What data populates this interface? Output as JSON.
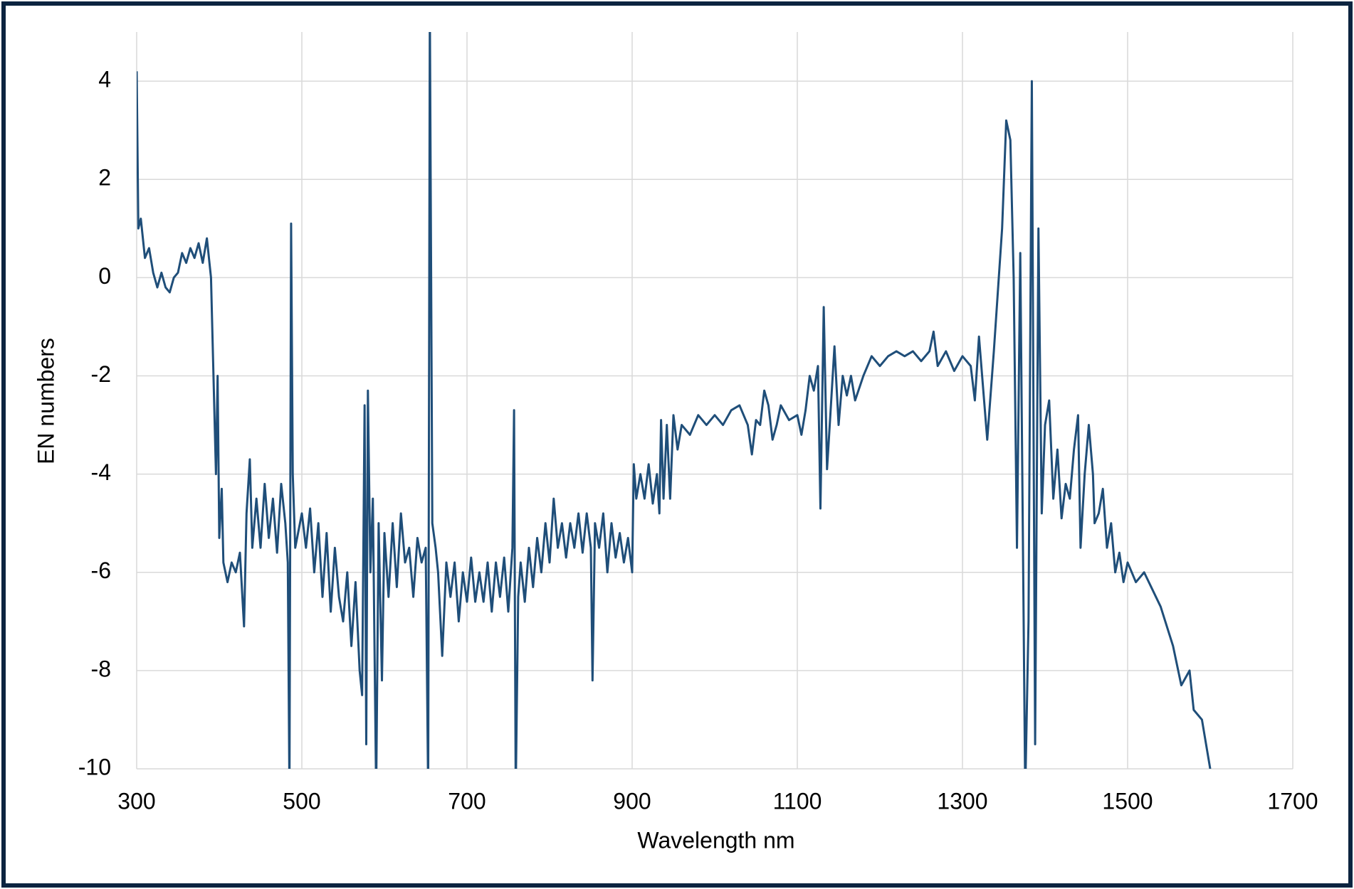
{
  "chart_data": {
    "type": "line",
    "x_label": "Wavelength nm",
    "y_label": "EN numbers",
    "color": "#1f4e79",
    "grid": true,
    "xlim": [
      300,
      1700
    ],
    "ylim": [
      -10,
      5
    ],
    "xticks": [
      300,
      500,
      700,
      900,
      1100,
      1300,
      1500,
      1700
    ],
    "yticks": [
      -10,
      -8,
      -6,
      -4,
      -2,
      0,
      2,
      4
    ],
    "x": [
      300,
      302,
      305,
      310,
      315,
      320,
      325,
      330,
      335,
      340,
      345,
      350,
      355,
      360,
      365,
      370,
      375,
      380,
      385,
      390,
      393,
      396,
      398,
      400,
      403,
      405,
      410,
      415,
      420,
      425,
      430,
      433,
      437,
      440,
      445,
      450,
      455,
      460,
      465,
      470,
      475,
      480,
      483,
      485,
      487,
      489,
      492,
      500,
      505,
      510,
      515,
      520,
      525,
      530,
      535,
      540,
      545,
      550,
      555,
      560,
      565,
      570,
      573,
      576,
      578,
      580,
      583,
      586,
      590,
      593,
      597,
      600,
      605,
      610,
      615,
      620,
      625,
      630,
      635,
      640,
      645,
      650,
      653,
      655,
      658,
      662,
      665,
      670,
      675,
      680,
      685,
      690,
      695,
      700,
      705,
      710,
      715,
      720,
      725,
      730,
      735,
      740,
      745,
      750,
      755,
      757,
      759,
      762,
      765,
      770,
      775,
      780,
      785,
      790,
      795,
      800,
      805,
      810,
      815,
      820,
      825,
      830,
      835,
      840,
      845,
      850,
      852,
      855,
      860,
      865,
      870,
      875,
      880,
      885,
      890,
      895,
      900,
      902,
      905,
      910,
      915,
      920,
      925,
      930,
      933,
      935,
      938,
      942,
      946,
      950,
      955,
      960,
      970,
      980,
      990,
      1000,
      1010,
      1020,
      1030,
      1040,
      1045,
      1050,
      1055,
      1060,
      1065,
      1070,
      1075,
      1080,
      1090,
      1100,
      1105,
      1110,
      1115,
      1120,
      1125,
      1128,
      1132,
      1136,
      1140,
      1145,
      1150,
      1155,
      1160,
      1165,
      1170,
      1180,
      1190,
      1200,
      1210,
      1220,
      1230,
      1240,
      1250,
      1260,
      1265,
      1270,
      1280,
      1290,
      1300,
      1310,
      1315,
      1320,
      1330,
      1338,
      1348,
      1353,
      1358,
      1362,
      1366,
      1370,
      1376,
      1380,
      1384,
      1388,
      1392,
      1396,
      1400,
      1405,
      1410,
      1415,
      1420,
      1425,
      1430,
      1435,
      1440,
      1443,
      1448,
      1453,
      1458,
      1460,
      1465,
      1470,
      1475,
      1480,
      1485,
      1490,
      1495,
      1500,
      1505,
      1510,
      1520,
      1540,
      1555,
      1565,
      1575,
      1580,
      1590,
      1595,
      1600
    ],
    "values": [
      4.2,
      1.0,
      1.2,
      0.4,
      0.6,
      0.1,
      -0.2,
      0.1,
      -0.2,
      -0.3,
      0.0,
      0.1,
      0.5,
      0.3,
      0.6,
      0.4,
      0.7,
      0.3,
      0.8,
      0.0,
      -2.0,
      -4.0,
      -2.0,
      -5.3,
      -4.3,
      -5.8,
      -6.2,
      -5.8,
      -6.0,
      -5.6,
      -7.1,
      -4.8,
      -3.7,
      -5.5,
      -4.5,
      -5.5,
      -4.2,
      -5.3,
      -4.5,
      -5.6,
      -4.2,
      -5.0,
      -5.8,
      -10.5,
      1.1,
      -4.0,
      -5.5,
      -4.8,
      -5.5,
      -4.7,
      -6.0,
      -5.0,
      -6.5,
      -5.2,
      -6.8,
      -5.5,
      -6.5,
      -7.0,
      -6.0,
      -7.5,
      -6.2,
      -8.0,
      -8.5,
      -2.6,
      -9.5,
      -2.3,
      -6.0,
      -4.5,
      -10.5,
      -5.0,
      -8.2,
      -5.2,
      -6.5,
      -5.0,
      -6.3,
      -4.8,
      -5.8,
      -5.5,
      -6.5,
      -5.3,
      -5.8,
      -5.5,
      -10.5,
      5.5,
      -5.0,
      -5.5,
      -6.0,
      -7.7,
      -5.8,
      -6.5,
      -5.8,
      -7.0,
      -6.0,
      -6.6,
      -5.7,
      -6.6,
      -6.0,
      -6.6,
      -5.8,
      -6.8,
      -5.8,
      -6.5,
      -5.7,
      -6.8,
      -5.5,
      -2.7,
      -10.5,
      -6.5,
      -5.8,
      -6.6,
      -5.5,
      -6.3,
      -5.3,
      -6.0,
      -5.0,
      -5.8,
      -4.5,
      -5.5,
      -5.0,
      -5.7,
      -5.0,
      -5.5,
      -4.8,
      -5.6,
      -4.8,
      -5.5,
      -8.2,
      -5.0,
      -5.5,
      -4.8,
      -6.0,
      -5.0,
      -5.7,
      -5.2,
      -5.8,
      -5.3,
      -6.0,
      -3.8,
      -4.5,
      -4.0,
      -4.5,
      -3.8,
      -4.6,
      -4.0,
      -4.8,
      -2.9,
      -4.5,
      -3.0,
      -4.5,
      -2.8,
      -3.5,
      -3.0,
      -3.2,
      -2.8,
      -3.0,
      -2.8,
      -3.0,
      -2.7,
      -2.6,
      -3.0,
      -3.6,
      -2.9,
      -3.0,
      -2.3,
      -2.6,
      -3.3,
      -3.0,
      -2.6,
      -2.9,
      -2.8,
      -3.2,
      -2.7,
      -2.0,
      -2.3,
      -1.8,
      -4.7,
      -0.6,
      -3.9,
      -2.8,
      -1.4,
      -3.0,
      -2.0,
      -2.4,
      -2.0,
      -2.5,
      -2.0,
      -1.6,
      -1.8,
      -1.6,
      -1.5,
      -1.6,
      -1.5,
      -1.7,
      -1.5,
      -1.1,
      -1.8,
      -1.5,
      -1.9,
      -1.6,
      -1.8,
      -2.5,
      -1.2,
      -3.3,
      -1.5,
      1.0,
      3.2,
      2.8,
      0.0,
      -5.5,
      0.5,
      -10.5,
      -7.0,
      4.0,
      -9.5,
      1.0,
      -4.8,
      -3.0,
      -2.5,
      -4.5,
      -3.5,
      -4.9,
      -4.2,
      -4.5,
      -3.5,
      -2.8,
      -5.5,
      -4.0,
      -3.0,
      -4.0,
      -5.0,
      -4.8,
      -4.3,
      -5.5,
      -5.0,
      -6.0,
      -5.6,
      -6.2,
      -5.8,
      -6.0,
      -6.2,
      -6.0,
      -6.7,
      -7.5,
      -8.3,
      -8.0,
      -8.8,
      -9.0,
      -9.5,
      -10.0
    ]
  }
}
